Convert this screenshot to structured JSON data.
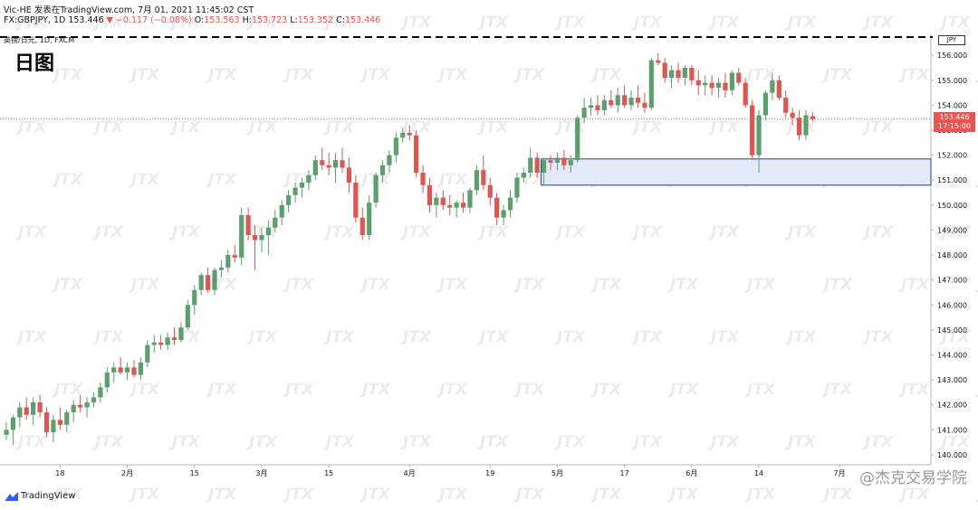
{
  "header": {
    "line1": "Vic-HE 发表在TradingView.com, 7月 01, 2021 11:45:02 CST",
    "symbol": "FX:GBPJPY, 1D 153.446",
    "change": "▼ −0.117 (−0.08%)",
    "o_label": "O:",
    "o_val": "153.563",
    "h_label": "H:",
    "h_val": "153.723",
    "l_label": "L:",
    "l_val": "153.352",
    "c_label": "C:",
    "c_val": "153.446",
    "subtitle": "英镑/日元, 1D, FXCM"
  },
  "day_label": "日图",
  "price_badge": {
    "price": "153.446",
    "time": "17:15:00"
  },
  "currency_badge": "JPY",
  "branding": {
    "tradingview": "TradingView",
    "account": "@杰克交易学院"
  },
  "watermark_text": "JTX",
  "colors": {
    "up": "#5b9f6e",
    "down": "#e0554f",
    "zone_fill": "#e3ebfb",
    "zone_stroke": "#2a3f7a",
    "price_line": "#ef5350"
  },
  "chart_data": {
    "type": "candlestick",
    "symbol": "GBPJPY",
    "timeframe": "1D",
    "y_range": [
      139.6,
      156.55
    ],
    "y_ticks": [
      "156.000",
      "155.000",
      "154.000",
      "153.000",
      "152.000",
      "151.000",
      "150.000",
      "149.000",
      "148.000",
      "147.000",
      "146.000",
      "145.000",
      "144.000",
      "143.000",
      "142.000",
      "141.000",
      "140.000"
    ],
    "x_ticks": [
      {
        "label": "18",
        "index": 8
      },
      {
        "label": "2月",
        "index": 18
      },
      {
        "label": "15",
        "index": 28
      },
      {
        "label": "3月",
        "index": 38
      },
      {
        "label": "15",
        "index": 48
      },
      {
        "label": "4月",
        "index": 60
      },
      {
        "label": "19",
        "index": 72
      },
      {
        "label": "5月",
        "index": 82
      },
      {
        "label": "17",
        "index": 92
      },
      {
        "label": "6月",
        "index": 102
      },
      {
        "label": "14",
        "index": 112
      },
      {
        "label": "7月",
        "index": 124
      }
    ],
    "last_price": 153.446,
    "top_dashed_line": 156.65,
    "zone": {
      "top": 151.85,
      "bottom": 150.8,
      "from_index": 80
    },
    "candles": [
      {
        "o": 140.8,
        "h": 141.3,
        "l": 140.6,
        "c": 141.0
      },
      {
        "o": 141.0,
        "h": 141.6,
        "l": 140.4,
        "c": 141.5
      },
      {
        "o": 141.5,
        "h": 142.1,
        "l": 141.1,
        "c": 141.9
      },
      {
        "o": 141.9,
        "h": 142.3,
        "l": 141.4,
        "c": 141.6
      },
      {
        "o": 141.6,
        "h": 142.3,
        "l": 141.2,
        "c": 142.1
      },
      {
        "o": 142.1,
        "h": 142.4,
        "l": 141.5,
        "c": 141.7
      },
      {
        "o": 141.7,
        "h": 141.9,
        "l": 140.7,
        "c": 140.9
      },
      {
        "o": 140.9,
        "h": 141.6,
        "l": 140.5,
        "c": 141.4
      },
      {
        "o": 141.4,
        "h": 141.9,
        "l": 141.0,
        "c": 141.2
      },
      {
        "o": 141.2,
        "h": 141.8,
        "l": 140.9,
        "c": 141.7
      },
      {
        "o": 141.7,
        "h": 142.2,
        "l": 141.3,
        "c": 142.0
      },
      {
        "o": 142.0,
        "h": 142.4,
        "l": 141.7,
        "c": 141.9
      },
      {
        "o": 141.9,
        "h": 142.3,
        "l": 141.5,
        "c": 142.1
      },
      {
        "o": 142.1,
        "h": 142.5,
        "l": 141.9,
        "c": 142.3
      },
      {
        "o": 142.3,
        "h": 142.9,
        "l": 142.1,
        "c": 142.7
      },
      {
        "o": 142.7,
        "h": 143.5,
        "l": 142.5,
        "c": 143.3
      },
      {
        "o": 143.3,
        "h": 143.7,
        "l": 142.9,
        "c": 143.5
      },
      {
        "o": 143.5,
        "h": 143.9,
        "l": 143.2,
        "c": 143.3
      },
      {
        "o": 143.3,
        "h": 143.7,
        "l": 143.0,
        "c": 143.5
      },
      {
        "o": 143.5,
        "h": 143.8,
        "l": 143.1,
        "c": 143.2
      },
      {
        "o": 143.2,
        "h": 143.9,
        "l": 143.0,
        "c": 143.7
      },
      {
        "o": 143.7,
        "h": 144.6,
        "l": 143.5,
        "c": 144.4
      },
      {
        "o": 144.4,
        "h": 144.8,
        "l": 144.1,
        "c": 144.5
      },
      {
        "o": 144.5,
        "h": 144.8,
        "l": 144.2,
        "c": 144.4
      },
      {
        "o": 144.4,
        "h": 144.9,
        "l": 144.2,
        "c": 144.7
      },
      {
        "o": 144.7,
        "h": 145.1,
        "l": 144.4,
        "c": 144.6
      },
      {
        "o": 144.6,
        "h": 145.3,
        "l": 144.5,
        "c": 145.1
      },
      {
        "o": 145.1,
        "h": 146.2,
        "l": 145.0,
        "c": 146.0
      },
      {
        "o": 146.0,
        "h": 146.8,
        "l": 145.6,
        "c": 146.6
      },
      {
        "o": 146.6,
        "h": 147.3,
        "l": 146.4,
        "c": 147.2
      },
      {
        "o": 147.2,
        "h": 147.5,
        "l": 146.5,
        "c": 146.6
      },
      {
        "o": 146.6,
        "h": 147.5,
        "l": 146.4,
        "c": 147.4
      },
      {
        "o": 147.4,
        "h": 147.8,
        "l": 147.1,
        "c": 147.5
      },
      {
        "o": 147.5,
        "h": 148.2,
        "l": 147.3,
        "c": 148.0
      },
      {
        "o": 148.0,
        "h": 148.4,
        "l": 147.7,
        "c": 147.9
      },
      {
        "o": 147.9,
        "h": 149.9,
        "l": 147.6,
        "c": 149.6
      },
      {
        "o": 149.6,
        "h": 149.9,
        "l": 148.6,
        "c": 148.8
      },
      {
        "o": 148.8,
        "h": 149.2,
        "l": 147.4,
        "c": 148.6
      },
      {
        "o": 148.6,
        "h": 149.1,
        "l": 148.1,
        "c": 148.8
      },
      {
        "o": 148.8,
        "h": 149.4,
        "l": 148.0,
        "c": 149.1
      },
      {
        "o": 149.1,
        "h": 149.8,
        "l": 148.9,
        "c": 149.5
      },
      {
        "o": 149.5,
        "h": 150.2,
        "l": 149.2,
        "c": 150.0
      },
      {
        "o": 150.0,
        "h": 150.6,
        "l": 149.7,
        "c": 150.4
      },
      {
        "o": 150.4,
        "h": 150.9,
        "l": 150.1,
        "c": 150.7
      },
      {
        "o": 150.7,
        "h": 151.1,
        "l": 150.3,
        "c": 150.9
      },
      {
        "o": 150.9,
        "h": 151.4,
        "l": 150.6,
        "c": 151.2
      },
      {
        "o": 151.2,
        "h": 152.0,
        "l": 151.0,
        "c": 151.8
      },
      {
        "o": 151.8,
        "h": 152.3,
        "l": 151.4,
        "c": 151.6
      },
      {
        "o": 151.6,
        "h": 152.1,
        "l": 151.2,
        "c": 151.5
      },
      {
        "o": 151.5,
        "h": 152.1,
        "l": 150.9,
        "c": 151.8
      },
      {
        "o": 151.8,
        "h": 152.3,
        "l": 151.3,
        "c": 151.5
      },
      {
        "o": 151.5,
        "h": 151.9,
        "l": 150.5,
        "c": 150.9
      },
      {
        "o": 150.9,
        "h": 151.2,
        "l": 149.3,
        "c": 149.5
      },
      {
        "o": 149.5,
        "h": 149.9,
        "l": 148.6,
        "c": 148.8
      },
      {
        "o": 148.8,
        "h": 150.4,
        "l": 148.6,
        "c": 150.1
      },
      {
        "o": 150.1,
        "h": 151.3,
        "l": 149.9,
        "c": 151.2
      },
      {
        "o": 151.2,
        "h": 151.8,
        "l": 150.9,
        "c": 151.6
      },
      {
        "o": 151.6,
        "h": 152.2,
        "l": 151.3,
        "c": 152.0
      },
      {
        "o": 152.0,
        "h": 152.9,
        "l": 151.7,
        "c": 152.7
      },
      {
        "o": 152.7,
        "h": 153.1,
        "l": 152.5,
        "c": 152.9
      },
      {
        "o": 152.9,
        "h": 153.2,
        "l": 152.6,
        "c": 152.8
      },
      {
        "o": 152.8,
        "h": 153.0,
        "l": 151.1,
        "c": 151.3
      },
      {
        "o": 151.3,
        "h": 151.6,
        "l": 150.5,
        "c": 150.8
      },
      {
        "o": 150.8,
        "h": 151.1,
        "l": 149.7,
        "c": 150.0
      },
      {
        "o": 150.0,
        "h": 150.5,
        "l": 149.5,
        "c": 150.3
      },
      {
        "o": 150.3,
        "h": 150.6,
        "l": 149.8,
        "c": 150.0
      },
      {
        "o": 150.0,
        "h": 150.4,
        "l": 149.6,
        "c": 149.9
      },
      {
        "o": 149.9,
        "h": 150.2,
        "l": 149.5,
        "c": 150.1
      },
      {
        "o": 150.1,
        "h": 150.5,
        "l": 149.7,
        "c": 149.9
      },
      {
        "o": 149.9,
        "h": 150.7,
        "l": 149.7,
        "c": 150.6
      },
      {
        "o": 150.6,
        "h": 151.6,
        "l": 150.4,
        "c": 151.4
      },
      {
        "o": 151.4,
        "h": 152.0,
        "l": 150.6,
        "c": 150.8
      },
      {
        "o": 150.8,
        "h": 151.1,
        "l": 150.0,
        "c": 150.3
      },
      {
        "o": 150.3,
        "h": 150.5,
        "l": 149.2,
        "c": 149.5
      },
      {
        "o": 149.5,
        "h": 150.0,
        "l": 149.2,
        "c": 149.8
      },
      {
        "o": 149.8,
        "h": 150.6,
        "l": 149.5,
        "c": 150.3
      },
      {
        "o": 150.3,
        "h": 151.3,
        "l": 150.1,
        "c": 151.1
      },
      {
        "o": 151.1,
        "h": 151.5,
        "l": 150.9,
        "c": 151.3
      },
      {
        "o": 151.3,
        "h": 152.3,
        "l": 151.1,
        "c": 151.9
      },
      {
        "o": 151.9,
        "h": 152.1,
        "l": 151.1,
        "c": 151.3
      },
      {
        "o": 151.3,
        "h": 151.9,
        "l": 150.8,
        "c": 151.8
      },
      {
        "o": 151.8,
        "h": 152.0,
        "l": 151.4,
        "c": 151.7
      },
      {
        "o": 151.7,
        "h": 152.1,
        "l": 151.4,
        "c": 151.9
      },
      {
        "o": 151.9,
        "h": 152.2,
        "l": 151.4,
        "c": 151.6
      },
      {
        "o": 151.6,
        "h": 152.0,
        "l": 151.3,
        "c": 151.8
      },
      {
        "o": 151.8,
        "h": 153.6,
        "l": 151.7,
        "c": 153.5
      },
      {
        "o": 153.5,
        "h": 154.3,
        "l": 153.3,
        "c": 153.9
      },
      {
        "o": 153.9,
        "h": 154.3,
        "l": 153.6,
        "c": 154.0
      },
      {
        "o": 154.0,
        "h": 154.4,
        "l": 153.6,
        "c": 153.8
      },
      {
        "o": 153.8,
        "h": 154.4,
        "l": 153.6,
        "c": 154.2
      },
      {
        "o": 154.2,
        "h": 154.6,
        "l": 153.9,
        "c": 154.0
      },
      {
        "o": 154.0,
        "h": 154.7,
        "l": 153.7,
        "c": 154.4
      },
      {
        "o": 154.4,
        "h": 154.8,
        "l": 153.9,
        "c": 154.0
      },
      {
        "o": 154.0,
        "h": 154.6,
        "l": 153.8,
        "c": 154.3
      },
      {
        "o": 154.3,
        "h": 154.8,
        "l": 153.9,
        "c": 154.1
      },
      {
        "o": 154.1,
        "h": 154.5,
        "l": 153.7,
        "c": 153.9
      },
      {
        "o": 153.9,
        "h": 155.9,
        "l": 153.8,
        "c": 155.8
      },
      {
        "o": 155.8,
        "h": 156.1,
        "l": 155.6,
        "c": 155.7
      },
      {
        "o": 155.7,
        "h": 155.9,
        "l": 154.9,
        "c": 155.1
      },
      {
        "o": 155.1,
        "h": 155.6,
        "l": 154.7,
        "c": 155.4
      },
      {
        "o": 155.4,
        "h": 155.7,
        "l": 154.9,
        "c": 155.1
      },
      {
        "o": 155.1,
        "h": 155.6,
        "l": 154.8,
        "c": 155.5
      },
      {
        "o": 155.5,
        "h": 155.6,
        "l": 154.8,
        "c": 155.0
      },
      {
        "o": 155.0,
        "h": 155.4,
        "l": 154.4,
        "c": 154.8
      },
      {
        "o": 154.8,
        "h": 155.2,
        "l": 154.4,
        "c": 154.9
      },
      {
        "o": 154.9,
        "h": 155.2,
        "l": 154.4,
        "c": 154.7
      },
      {
        "o": 154.7,
        "h": 155.1,
        "l": 154.3,
        "c": 154.9
      },
      {
        "o": 154.9,
        "h": 155.3,
        "l": 154.3,
        "c": 154.6
      },
      {
        "o": 154.6,
        "h": 155.4,
        "l": 154.4,
        "c": 155.3
      },
      {
        "o": 155.3,
        "h": 155.5,
        "l": 154.8,
        "c": 154.9
      },
      {
        "o": 154.9,
        "h": 155.1,
        "l": 153.9,
        "c": 154.0
      },
      {
        "o": 154.0,
        "h": 154.2,
        "l": 151.8,
        "c": 152.0
      },
      {
        "o": 152.0,
        "h": 153.8,
        "l": 151.3,
        "c": 153.6
      },
      {
        "o": 153.6,
        "h": 154.6,
        "l": 153.4,
        "c": 154.5
      },
      {
        "o": 154.5,
        "h": 155.3,
        "l": 154.2,
        "c": 155.0
      },
      {
        "o": 155.0,
        "h": 155.2,
        "l": 154.2,
        "c": 154.3
      },
      {
        "o": 154.3,
        "h": 154.6,
        "l": 153.5,
        "c": 153.7
      },
      {
        "o": 153.7,
        "h": 153.9,
        "l": 153.2,
        "c": 153.5
      },
      {
        "o": 153.5,
        "h": 153.8,
        "l": 152.6,
        "c": 152.8
      },
      {
        "o": 152.8,
        "h": 153.8,
        "l": 152.6,
        "c": 153.6
      },
      {
        "o": 153.563,
        "h": 153.723,
        "l": 153.352,
        "c": 153.446
      }
    ]
  }
}
